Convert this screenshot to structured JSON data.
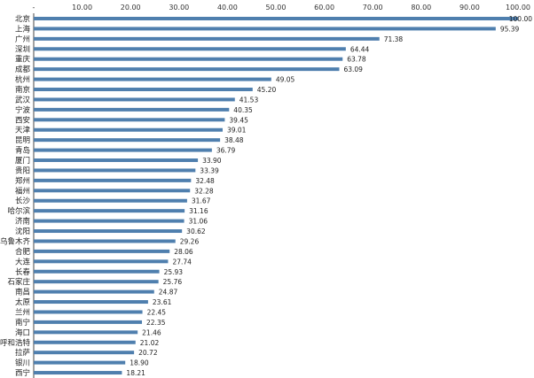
{
  "chart_data": {
    "type": "bar",
    "orientation": "horizontal",
    "title": "",
    "xlabel": "",
    "ylabel": "",
    "xlim": [
      0,
      100
    ],
    "ticks": [
      "-",
      "10.00",
      "20.00",
      "30.00",
      "40.00",
      "50.00",
      "60.00",
      "70.00",
      "80.00",
      "90.00",
      "100.00"
    ],
    "grid": false,
    "legend": "none",
    "bar_color": "#4f7fae",
    "categories": [
      "北京",
      "上海",
      "广州",
      "深圳",
      "重庆",
      "成都",
      "杭州",
      "南京",
      "武汉",
      "宁波",
      "西安",
      "天津",
      "昆明",
      "青岛",
      "厦门",
      "贵阳",
      "郑州",
      "福州",
      "长沙",
      "哈尔滨",
      "济南",
      "沈阳",
      "乌鲁木齐",
      "合肥",
      "大连",
      "长春",
      "石家庄",
      "南昌",
      "太原",
      "兰州",
      "南宁",
      "海口",
      "呼和浩特",
      "拉萨",
      "银川",
      "西宁"
    ],
    "values": [
      100.0,
      95.39,
      71.38,
      64.44,
      63.78,
      63.09,
      49.05,
      45.2,
      41.53,
      40.35,
      39.45,
      39.01,
      38.48,
      36.79,
      33.9,
      33.39,
      32.48,
      32.28,
      31.67,
      31.16,
      31.06,
      30.62,
      29.26,
      28.06,
      27.74,
      25.93,
      25.76,
      24.87,
      23.61,
      22.45,
      22.35,
      21.46,
      21.02,
      20.72,
      18.9,
      18.21
    ],
    "value_labels": [
      "100.00",
      "95.39",
      "71.38",
      "64.44",
      "63.78",
      "63.09",
      "49.05",
      "45.20",
      "41.53",
      "40.35",
      "39.45",
      "39.01",
      "38.48",
      "36.79",
      "33.90",
      "33.39",
      "32.48",
      "32.28",
      "31.67",
      "31.16",
      "31.06",
      "30.62",
      "29.26",
      "28.06",
      "27.74",
      "25.93",
      "25.76",
      "24.87",
      "23.61",
      "22.45",
      "22.35",
      "21.46",
      "21.02",
      "20.72",
      "18.90",
      "18.21"
    ]
  }
}
